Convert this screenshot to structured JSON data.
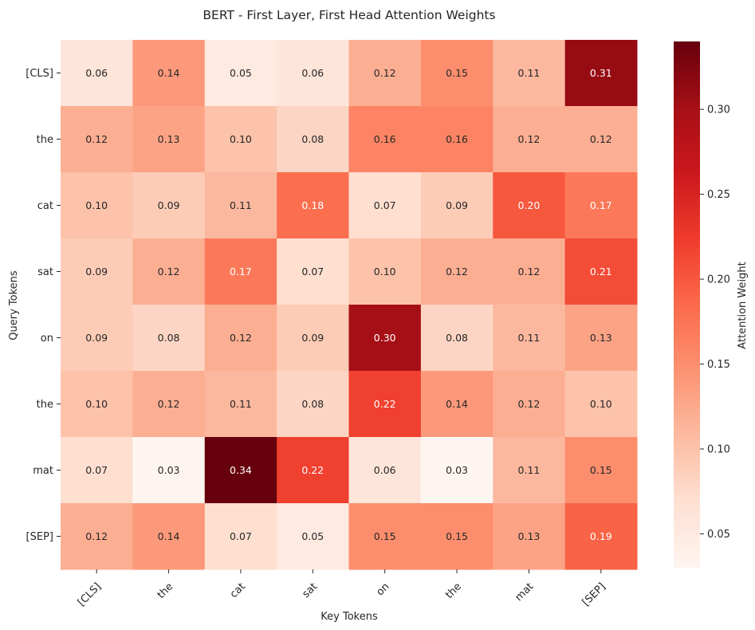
{
  "chart_data": {
    "type": "heatmap",
    "title": "BERT - First Layer, First Head Attention Weights",
    "xlabel": "Key Tokens",
    "ylabel": "Query Tokens",
    "x_categories": [
      "[CLS]",
      "the",
      "cat",
      "sat",
      "on",
      "the",
      "mat",
      "[SEP]"
    ],
    "y_categories": [
      "[CLS]",
      "the",
      "cat",
      "sat",
      "on",
      "the",
      "mat",
      "[SEP]"
    ],
    "values": [
      [
        0.06,
        0.14,
        0.05,
        0.06,
        0.12,
        0.15,
        0.11,
        0.31
      ],
      [
        0.12,
        0.13,
        0.1,
        0.08,
        0.16,
        0.16,
        0.12,
        0.12
      ],
      [
        0.1,
        0.09,
        0.11,
        0.18,
        0.07,
        0.09,
        0.2,
        0.17
      ],
      [
        0.09,
        0.12,
        0.17,
        0.07,
        0.1,
        0.12,
        0.12,
        0.21
      ],
      [
        0.09,
        0.08,
        0.12,
        0.09,
        0.3,
        0.08,
        0.11,
        0.13
      ],
      [
        0.1,
        0.12,
        0.11,
        0.08,
        0.22,
        0.14,
        0.12,
        0.1
      ],
      [
        0.07,
        0.03,
        0.34,
        0.22,
        0.06,
        0.03,
        0.11,
        0.15
      ],
      [
        0.12,
        0.14,
        0.07,
        0.05,
        0.15,
        0.15,
        0.13,
        0.19
      ]
    ],
    "value_format": "0.00",
    "colormap": "Reds",
    "color_range": [
      0.03,
      0.34
    ],
    "colorbar": {
      "label": "Attention Weight",
      "ticks": [
        0.05,
        0.1,
        0.15,
        0.2,
        0.25,
        0.3
      ],
      "tick_labels": [
        "0.05",
        "0.10",
        "0.15",
        "0.20",
        "0.25",
        "0.30"
      ],
      "placement": "right"
    },
    "x_tick_rotation": 45,
    "grid": false
  }
}
